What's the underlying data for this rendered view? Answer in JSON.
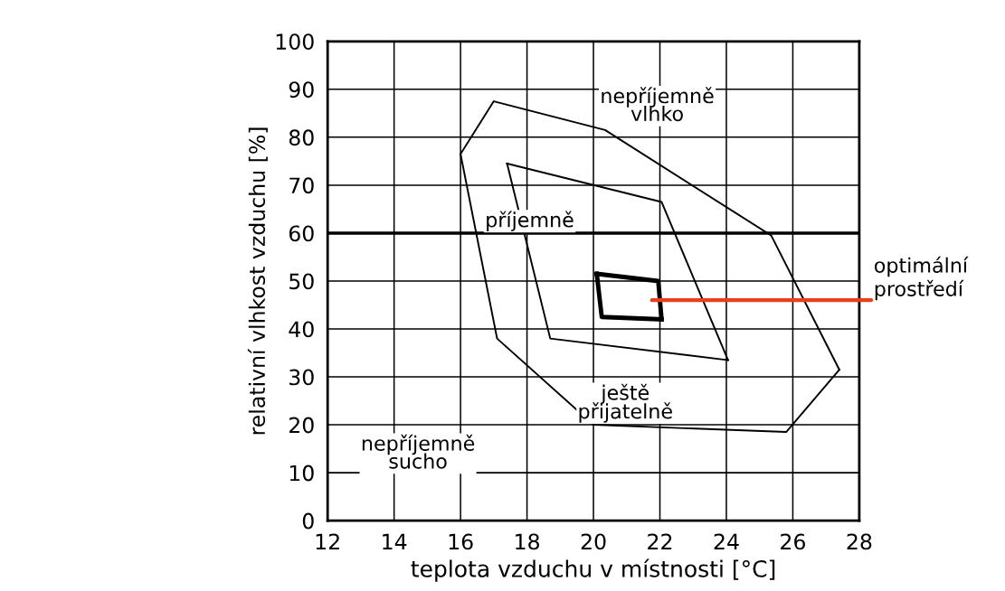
{
  "chart_data": {
    "type": "line",
    "xlabel": "teplota vzduchu v místnosti [°C]",
    "ylabel": "relativní vlhkost vzduchu [%]",
    "xlim": [
      12,
      28
    ],
    "xticks": [
      12,
      14,
      16,
      18,
      20,
      22,
      24,
      26,
      28
    ],
    "ylim": [
      0,
      100
    ],
    "yticks": [
      0,
      10,
      20,
      30,
      40,
      50,
      60,
      70,
      80,
      90,
      100
    ],
    "grid": true,
    "marker": "none",
    "line_style": "solid",
    "series": [
      {
        "color": "#000000",
        "x": [
          16.0,
          17.0,
          20.35,
          25.35,
          27.4
        ],
        "values": [
          76.5,
          87.5,
          81.5,
          59.5,
          31.5
        ]
      },
      {
        "color": "#000000",
        "x": [
          16.0,
          17.1,
          20.0,
          25.8,
          27.4
        ],
        "values": [
          76.5,
          38,
          20,
          18.5,
          31.5
        ]
      },
      {
        "color": "#000000",
        "x": [
          17.4,
          22.05,
          24.05
        ],
        "values": [
          74.5,
          66.5,
          33.5
        ]
      },
      {
        "color": "#000000",
        "x": [
          17.4,
          18.7,
          24.05
        ],
        "values": [
          74.5,
          38,
          33.5
        ]
      },
      {
        "color": "#000000",
        "x": [
          20.1,
          21.95,
          22.05
        ],
        "values": [
          51.5,
          50,
          42
        ]
      },
      {
        "color": "#000000",
        "x": [
          20.1,
          20.25,
          22.05
        ],
        "values": [
          51.5,
          42.5,
          42
        ]
      }
    ],
    "ref_lines": [
      {
        "axis": "y",
        "value": 60,
        "color": "#000000"
      }
    ],
    "annotations": [
      "nepříjemně\nvlhko",
      "příjemně",
      "ještě\npřijatelně",
      "nepříjemně\nsucho",
      "optimální\nprostředí"
    ]
  }
}
